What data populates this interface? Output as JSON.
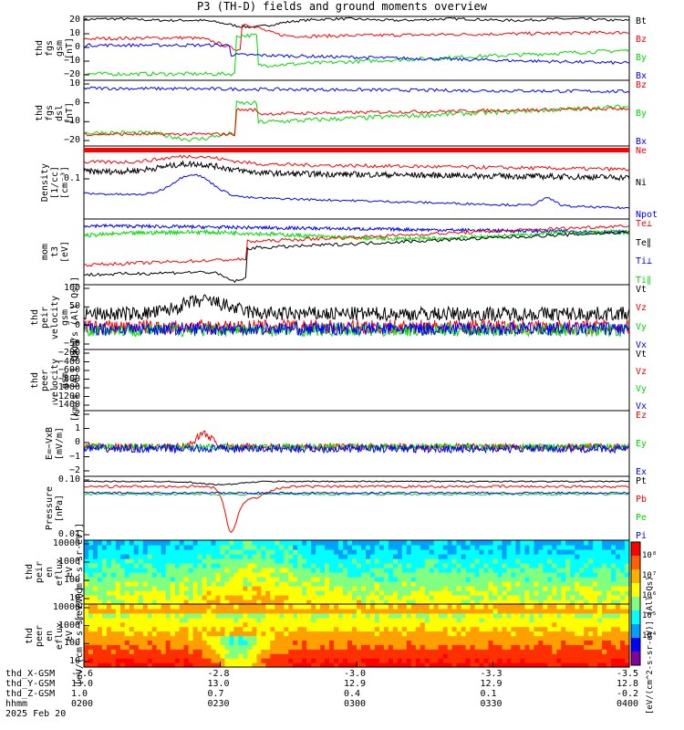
{
  "title": "P3 (TH-D) fields and ground moments overview",
  "chart_data": [
    {
      "type": "line",
      "ylabel": [
        "thd",
        "fgs",
        "gsm",
        "[nT]"
      ],
      "yticks": [
        "20",
        "10",
        "0",
        "−10",
        "−20"
      ],
      "ylim": [
        -20,
        20
      ],
      "series": [
        {
          "name": "Bt",
          "color": "#000000"
        },
        {
          "name": "Bz",
          "color": "#ff0000"
        },
        {
          "name": "By",
          "color": "#00dd00"
        },
        {
          "name": "Bx",
          "color": "#0000ff"
        }
      ]
    },
    {
      "type": "line",
      "ylabel": [
        "thd",
        "fgs",
        "dsl",
        "[nT]"
      ],
      "yticks": [
        "10",
        "0",
        "−10",
        "−20"
      ],
      "ylim": [
        -25,
        12
      ],
      "series": [
        {
          "name": "Bz",
          "color": "#ff0000"
        },
        {
          "name": "By",
          "color": "#00dd00"
        },
        {
          "name": "Bx",
          "color": "#0000ff"
        }
      ]
    },
    {
      "type": "line",
      "ylabel": [
        "Density",
        "[1/cc]",
        "[cm⁻³]"
      ],
      "yticks": [
        "0.1"
      ],
      "series": [
        {
          "name": "Ne",
          "color": "#ff0000"
        },
        {
          "name": "Ni",
          "color": "#000000"
        },
        {
          "name": "Npot",
          "color": "#0000ff"
        }
      ]
    },
    {
      "type": "line",
      "ylabel": [
        "mom",
        "t3",
        "[eV]"
      ],
      "yticks": [],
      "series": [
        {
          "name": "Te⊥",
          "color": "#ff0000"
        },
        {
          "name": "Te∥",
          "color": "#000000"
        },
        {
          "name": "Ti⊥",
          "color": "#0000ff"
        },
        {
          "name": "Ti∥",
          "color": "#00dd00"
        }
      ]
    },
    {
      "type": "line",
      "ylabel": [
        "thd",
        "peir",
        "velocity",
        "gsm",
        "[km/s (All Qs)]"
      ],
      "yticks": [
        "100",
        "50",
        "0",
        "−50"
      ],
      "ylim": [
        -55,
        130
      ],
      "series": [
        {
          "name": "Vt",
          "color": "#000000"
        },
        {
          "name": "Vz",
          "color": "#ff0000"
        },
        {
          "name": "Vy",
          "color": "#00dd00"
        },
        {
          "name": "Vx",
          "color": "#0000ff"
        }
      ]
    },
    {
      "type": "line",
      "ylabel": [
        "thd",
        "peer",
        "velocity",
        "gsm",
        "[km/s (All Qs)]"
      ],
      "yticks": [
        "−200",
        "−400",
        "−600",
        "−800",
        "−1000",
        "−1200",
        "−1400"
      ],
      "ylim": [
        -1450,
        -150
      ],
      "series": [
        {
          "name": "Vt",
          "color": "#000000"
        },
        {
          "name": "Vz",
          "color": "#ff0000"
        },
        {
          "name": "Vy",
          "color": "#00dd00"
        },
        {
          "name": "Vx",
          "color": "#0000ff"
        }
      ]
    },
    {
      "type": "line",
      "ylabel": [
        "E=−VxB",
        "[mV/m]"
      ],
      "yticks": [
        "2",
        "1",
        "0",
        "−1",
        "−2"
      ],
      "ylim": [
        -2.2,
        2.8
      ],
      "series": [
        {
          "name": "Ez",
          "color": "#ff0000"
        },
        {
          "name": "Ey",
          "color": "#00dd00"
        },
        {
          "name": "Ex",
          "color": "#0000ff"
        }
      ]
    },
    {
      "type": "line",
      "ylabel": [
        "Pressure",
        "[nPa]"
      ],
      "yticks": [
        "0.10",
        "0.01"
      ],
      "series": [
        {
          "name": "Pt",
          "color": "#000000"
        },
        {
          "name": "Pb",
          "color": "#ff0000"
        },
        {
          "name": "Pe",
          "color": "#00dd00"
        },
        {
          "name": "Pi",
          "color": "#0000ff"
        }
      ]
    },
    {
      "type": "heatmap",
      "ylabel": [
        "thd",
        "peir",
        "en",
        "eflux",
        "eV",
        "[eV/(cm²·s·sr·eV)]"
      ],
      "yticks": [
        "10000",
        "1000",
        "100",
        "10"
      ]
    },
    {
      "type": "heatmap",
      "ylabel": [
        "thd",
        "peer",
        "en",
        "eflux",
        "eV",
        "[eV/(cm²·s·sr·eV)]"
      ],
      "yticks": [
        "10000",
        "1000",
        "100",
        "10"
      ]
    }
  ],
  "colorbar": {
    "label": "[eV/(cm^2-s-sr-eV)] (All Qs)",
    "ticks": [
      "10⁸",
      "10⁷",
      "10⁶",
      "10⁵",
      "10⁴"
    ]
  },
  "footer": {
    "rows": [
      {
        "label": "thd_X-GSM",
        "values": [
          "-2.6",
          "-2.8",
          "-3.0",
          "-3.3",
          "-3.5"
        ]
      },
      {
        "label": "thd_Y-GSM",
        "values": [
          "13.0",
          "13.0",
          "12.9",
          "12.9",
          "12.8"
        ]
      },
      {
        "label": "thd_Z-GSM",
        "values": [
          "1.0",
          "0.7",
          "0.4",
          "0.1",
          "-0.2"
        ]
      },
      {
        "label": "hhmm",
        "values": [
          "0200",
          "0230",
          "0300",
          "0330",
          "0400"
        ]
      }
    ],
    "date": "2025 Feb 20"
  }
}
